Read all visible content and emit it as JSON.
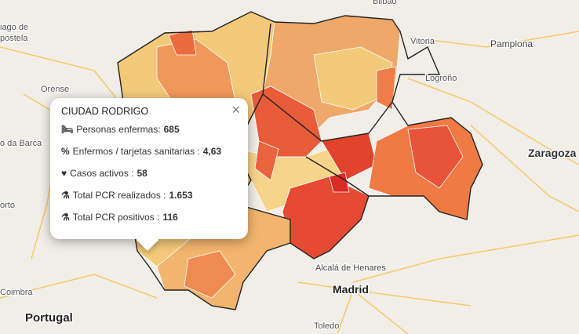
{
  "map": {
    "labels": [
      "iago de",
      "postela",
      "Orense",
      "o da Barca",
      "orto",
      "Coimbra",
      "Portugal",
      "Bilbao",
      "Vitoria",
      "Pamplona",
      "Logroño",
      "Zaragoza",
      "Madrid",
      "Alcalá de Henares",
      "Toledo"
    ]
  },
  "popup": {
    "title": "CIUDAD RODRIGO",
    "rows": [
      {
        "label": "Personas enfermas:",
        "value": "685"
      },
      {
        "label": "Enfermos / tarjetas sanitarias :",
        "value": "4,63"
      },
      {
        "label": "Casos activos :",
        "value": "58"
      },
      {
        "label": "Total PCR realizados :",
        "value": "1.653"
      },
      {
        "label": "Total PCR positivos :",
        "value": "116"
      }
    ]
  }
}
